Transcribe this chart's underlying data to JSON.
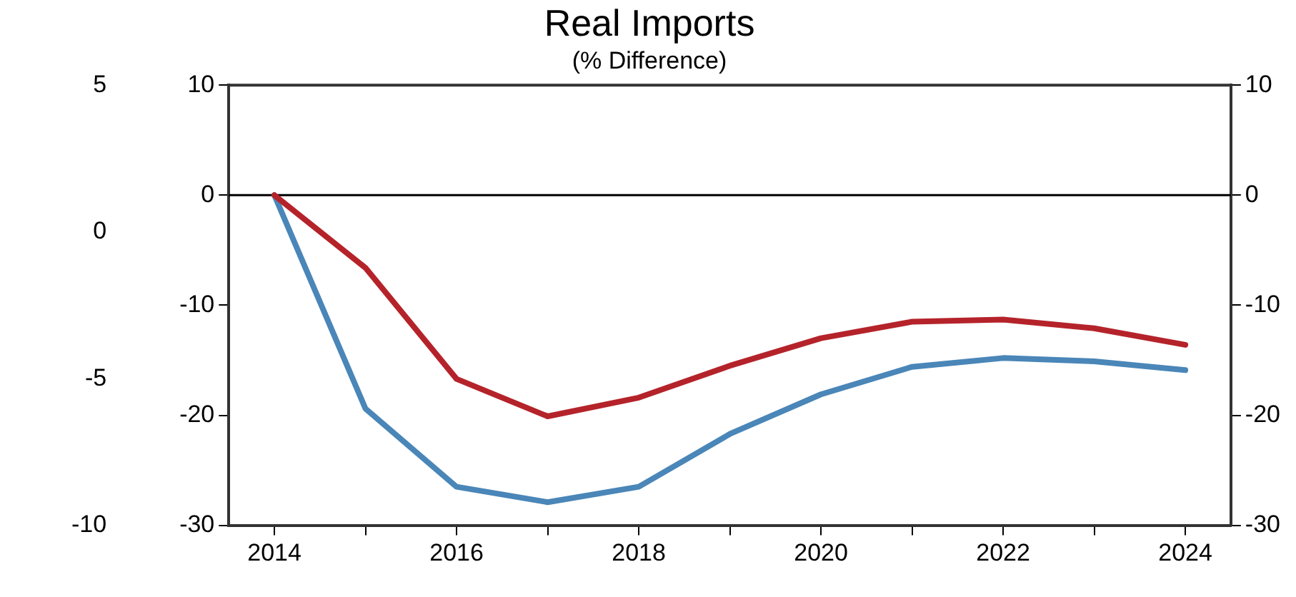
{
  "chart_data": {
    "type": "line",
    "title": "Real Imports",
    "subtitle": "(% Difference)",
    "x": [
      2014,
      2015,
      2016,
      2017,
      2018,
      2019,
      2020,
      2021,
      2022,
      2023,
      2024
    ],
    "series": [
      {
        "color": "#b5232a",
        "values": [
          0,
          -6.6,
          -16.7,
          -20.1,
          -18.4,
          -15.5,
          -13,
          -11.5,
          -11.3,
          -12.1,
          -13.6
        ]
      },
      {
        "color": "#4a86b8",
        "values": [
          0,
          -19.4,
          -26.5,
          -27.9,
          -26.5,
          -21.7,
          -18.1,
          -15.6,
          -14.8,
          -15.1,
          -15.9
        ]
      }
    ],
    "xlim": [
      2013.5,
      2024.5
    ],
    "xticks": [
      2014,
      {
        "value": 2015,
        "label": null
      },
      2016,
      {
        "value": 2017,
        "label": null
      },
      2018,
      {
        "value": 2019,
        "label": null
      },
      2020,
      {
        "value": 2021,
        "label": null
      },
      2022,
      {
        "value": 2023,
        "label": null
      },
      2024
    ],
    "ylim": [
      -30,
      10
    ],
    "yticks": [
      -30,
      -20,
      -10,
      0,
      10
    ],
    "y2lim": [
      -30,
      10
    ],
    "y2ticks": [
      -30,
      -20,
      -10,
      0,
      10
    ],
    "y3lim": [
      -10,
      5
    ],
    "y3ticks": [
      -10,
      -5,
      0,
      5
    ],
    "ref_lines": [
      {
        "axis": "y",
        "value": 0,
        "color": "#000000"
      }
    ],
    "grid": false,
    "legend": false,
    "marker": "none",
    "line_style": "solid"
  }
}
